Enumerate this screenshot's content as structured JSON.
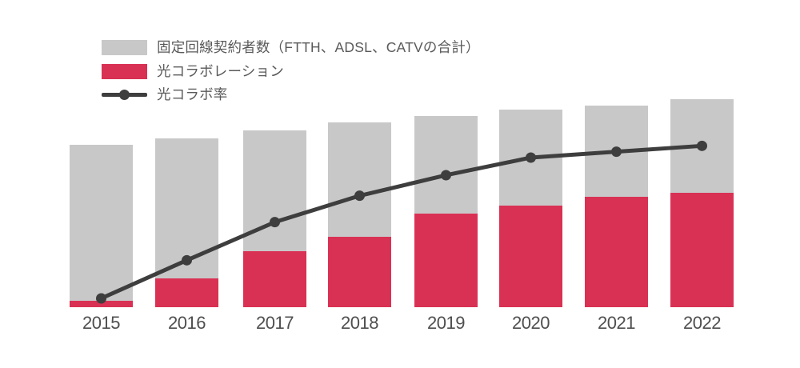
{
  "chart_data": {
    "type": "bar",
    "subtype": "overlay-bars-with-line",
    "title": "",
    "xlabel": "",
    "ylabel": "",
    "grid": false,
    "value_axis_visible": false,
    "legend_position": "top-left",
    "categories": [
      "2015",
      "2016",
      "2017",
      "2018",
      "2019",
      "2020",
      "2021",
      "2022"
    ],
    "series": [
      {
        "name": "固定回線契約者数（FTTH、ADSL、CATVの合計）",
        "type": "bar",
        "color": "#c8c8c8",
        "values": [
          78,
          81,
          85,
          89,
          92,
          95,
          97,
          100
        ],
        "units": "relative index (2022 = 100); no numeric value axis is shown in the chart"
      },
      {
        "name": "光コラボレーション",
        "type": "bar",
        "color": "#d93154",
        "values": [
          3,
          14,
          27,
          34,
          45,
          49,
          53,
          55
        ],
        "units": "relative index (same scale as total bars), drawn as bottom overlay inside total bar"
      },
      {
        "name": "光コラボ率",
        "type": "line",
        "color": "#3e3e3e",
        "values": [
          3,
          16,
          29,
          38,
          45,
          51,
          53,
          55
        ],
        "units": "percent (estimated from line position; no axis labels shown)"
      }
    ]
  },
  "legend": {
    "items": [
      {
        "swatch": "gray-rect",
        "label": "固定回線契約者数（FTTH、ADSL、CATVの合計）"
      },
      {
        "swatch": "red-rect",
        "label": "光コラボレーション"
      },
      {
        "swatch": "line-with-dot",
        "label": "光コラボ率"
      }
    ]
  },
  "x_axis": {
    "labels": [
      "2015",
      "2016",
      "2017",
      "2018",
      "2019",
      "2020",
      "2021",
      "2022"
    ]
  },
  "colors": {
    "background": "#ffffff",
    "bar_total": "#c8c8c8",
    "bar_collab": "#d93154",
    "line": "#3e3e3e",
    "axis_label_text": "#4f4f4f",
    "legend_text": "#5a5a5a"
  }
}
